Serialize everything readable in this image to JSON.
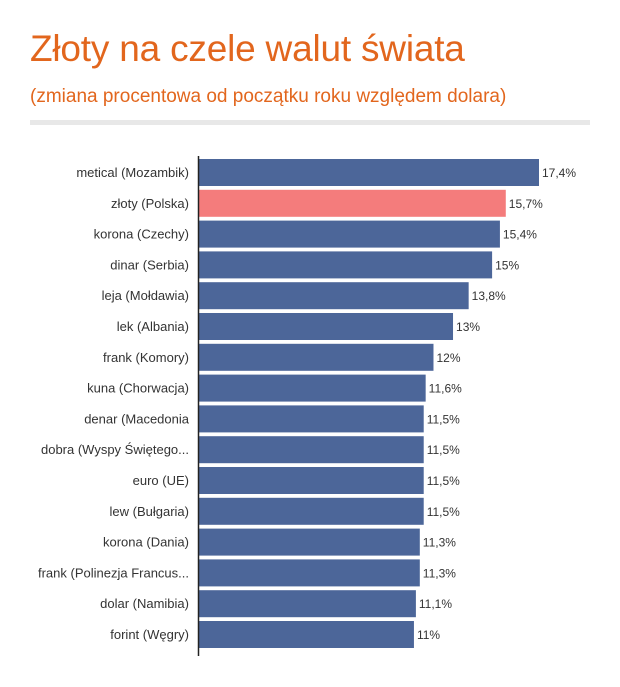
{
  "header": {
    "title": "Złoty na czele walut świata",
    "subtitle": "(zmiana procentowa od początku roku względem dolara)"
  },
  "colors": {
    "accent": "#e2661d",
    "bar": "#4c6699",
    "highlight": "#f47c7c",
    "divider": "#e8e8e8"
  },
  "chart_data": {
    "type": "bar",
    "orientation": "horizontal",
    "categories": [
      "metical (Mozambik)",
      "złoty (Polska)",
      "korona (Czechy)",
      "dinar (Serbia)",
      "leja (Mołdawia)",
      "lek (Albania)",
      "frank (Komory)",
      "kuna (Chorwacja)",
      "denar (Macedonia",
      "dobra (Wyspy Świętego...",
      "euro (UE)",
      "lew (Bułgaria)",
      "korona (Dania)",
      "frank (Polinezja Francus...",
      "dolar (Namibia)",
      "forint (Węgry)"
    ],
    "values": [
      17.4,
      15.7,
      15.4,
      15,
      13.8,
      13,
      12,
      11.6,
      11.5,
      11.5,
      11.5,
      11.5,
      11.3,
      11.3,
      11.1,
      11
    ],
    "value_labels": [
      "17,4%",
      "15,7%",
      "15,4%",
      "15%",
      "13,8%",
      "13%",
      "12%",
      "11,6%",
      "11,5%",
      "11,5%",
      "11,5%",
      "11,5%",
      "11,3%",
      "11,3%",
      "11,1%",
      "11%"
    ],
    "highlight_index": 1,
    "xlim": [
      0,
      17.4
    ],
    "grid": false,
    "legend": "none"
  }
}
